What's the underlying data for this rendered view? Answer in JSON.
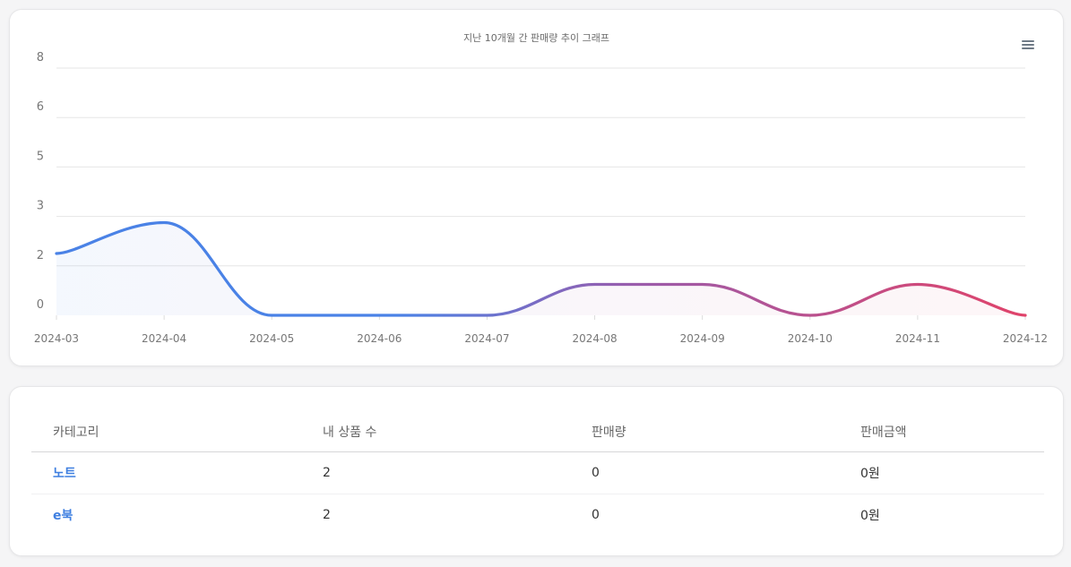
{
  "chart_data": {
    "type": "area",
    "title": "지난 10개월 간 판매량 추이 그래프",
    "x": [
      "2024-03",
      "2024-04",
      "2024-05",
      "2024-06",
      "2024-07",
      "2024-08",
      "2024-09",
      "2024-10",
      "2024-11",
      "2024-12"
    ],
    "y": [
      2,
      3,
      0,
      0,
      0,
      1,
      1,
      0,
      1,
      0
    ],
    "ylim": [
      0,
      8
    ],
    "yticks": [
      0,
      2,
      3,
      5,
      6,
      8
    ],
    "grid": true,
    "gradient": [
      "#4a82e6",
      "#e0436a"
    ]
  },
  "table": {
    "headers": [
      "카테고리",
      "내 상품 수",
      "판매량",
      "판매금액"
    ],
    "rows": [
      [
        "노트",
        "2",
        "0",
        "0원"
      ],
      [
        "e북",
        "2",
        "0",
        "0원"
      ]
    ]
  }
}
